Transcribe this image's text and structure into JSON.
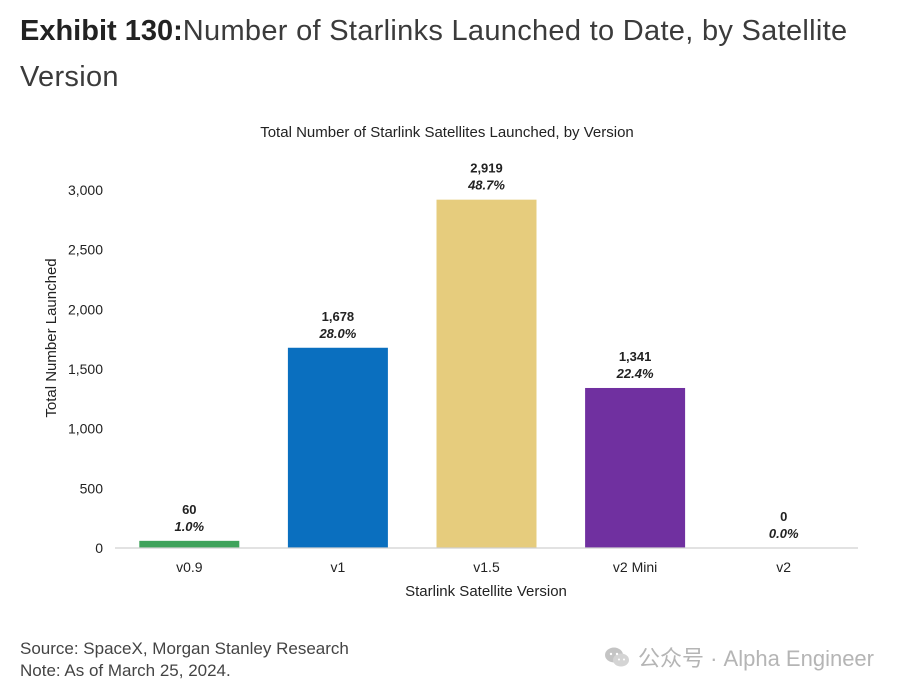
{
  "header": {
    "exhibit_label": "Exhibit 130:",
    "title": "Number of Starlinks Launched to Date, by Satellite Version"
  },
  "chart_data": {
    "type": "bar",
    "title": "Total Number of Starlink Satellites Launched, by Version",
    "xlabel": "Starlink Satellite Version",
    "ylabel": "Total Number Launched",
    "categories": [
      "v0.9",
      "v1",
      "v1.5",
      "v2 Mini",
      "v2"
    ],
    "values": [
      60,
      1678,
      2919,
      1341,
      0
    ],
    "value_labels": [
      "60",
      "1,678",
      "2,919",
      "1,341",
      "0"
    ],
    "percent_labels": [
      "1.0%",
      "28.0%",
      "48.7%",
      "22.4%",
      "0.0%"
    ],
    "colors": [
      "#3fa35b",
      "#0a6fbf",
      "#e6cc7d",
      "#7030a0",
      "#cccccc"
    ],
    "yticks": [
      0,
      500,
      1000,
      1500,
      2000,
      2500,
      3000
    ],
    "ytick_labels": [
      "0",
      "500",
      "1,000",
      "1,500",
      "2,000",
      "2,500",
      "3,000"
    ],
    "ylim": [
      0,
      3000
    ],
    "grid": false,
    "legend": "none"
  },
  "footer": {
    "source": "Source: SpaceX, Morgan Stanley Research",
    "note": "Note: As of March 25, 2024."
  },
  "watermark": {
    "text": "公众号 · Alpha Engineer",
    "icon": "wechat-icon"
  }
}
